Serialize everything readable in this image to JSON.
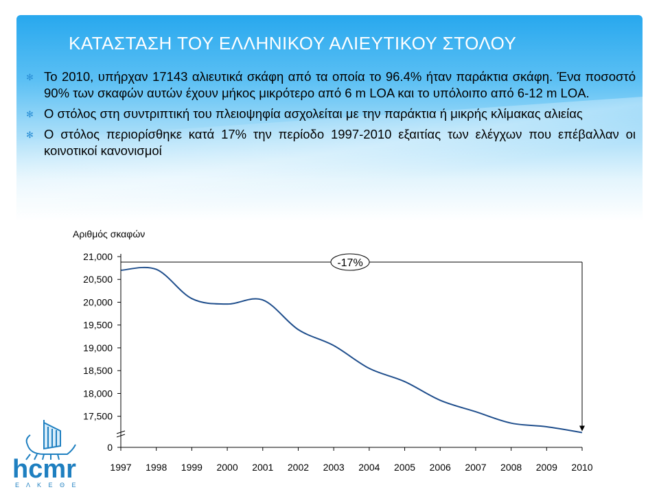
{
  "slide": {
    "title": "ΚΑΤΑΣΤΑΣΗ ΤΟΥ ΕΛΛΗΝΙΚΟΥ ΑΛΙΕΥΤΙΚΟΥ ΣΤΟΛΟΥ",
    "bullets": [
      "Το 2010, υπήρχαν 17143 αλιευτικά σκάφη από τα οποία το 96.4% ήταν παράκτια σκάφη. Ένα ποσοστό 90% των σκαφών αυτών έχουν μήκος μικρότερο από 6 m LOA και το υπόλοιπο από 6-12 m LOA.",
      "Ο στόλος στη συντριπτική του πλειοψηφία ασχολείται με την παράκτια ή μικρής κλίμακας αλιείας",
      "Ο στόλος περιορίσθηκε κατά 17% την περίοδο 1997-2010 εξαιτίας των ελέγχων που επέβαλλαν οι κοινοτικοί κανονισμοί"
    ],
    "bullet_icon": "asterisk-bullet-icon",
    "accent_color": "#28a8ee"
  },
  "logo": {
    "text": "hcmr",
    "subtext": "Ε Λ Κ Ε Θ Ε",
    "icon": "ancient-ship-icon",
    "color": "#1e7fc0"
  },
  "chart_data": {
    "type": "line",
    "ylabel": "Αριθμός σκαφών",
    "categories": [
      "1997",
      "1998",
      "1999",
      "2000",
      "2001",
      "2002",
      "2003",
      "2004",
      "2005",
      "2006",
      "2007",
      "2008",
      "2009",
      "2010"
    ],
    "series": [
      {
        "values": [
          20700,
          20720,
          20080,
          19960,
          20050,
          19400,
          19050,
          18550,
          18260,
          17850,
          17600,
          17350,
          17270,
          17143
        ]
      }
    ],
    "yticks": [
      0,
      17500,
      18000,
      18500,
      19000,
      19500,
      20000,
      20500,
      21000
    ],
    "ytick_labels": [
      "0",
      "17,500",
      "18,000",
      "18,500",
      "19,000",
      "19,500",
      "20,000",
      "20,500",
      "21,000"
    ],
    "ylim": [
      17300,
      21000
    ],
    "axis_break": true,
    "annotation": "-17%",
    "line_color": "#1f4e8c",
    "grid": false,
    "legend": "none"
  }
}
